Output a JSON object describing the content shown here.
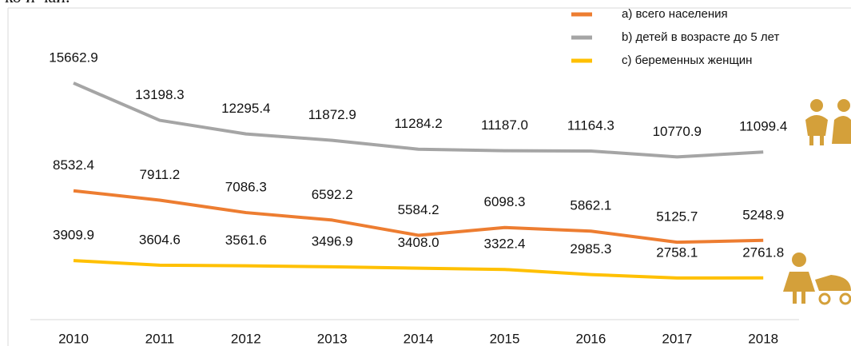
{
  "chart_data": {
    "type": "line",
    "caption": "ко и чай.",
    "categories": [
      "2010",
      "2011",
      "2012",
      "2013",
      "2014",
      "2015",
      "2016",
      "2017",
      "2018"
    ],
    "series": [
      {
        "name": "а) всего населения",
        "color": "#ed7d31",
        "values": [
          8532.4,
          7911.2,
          7086.3,
          6592.2,
          5584.2,
          6098.3,
          5862.1,
          5125.7,
          5248.9
        ],
        "value_labels": [
          "8532.4",
          "7911.2",
          "7086.3",
          "6592.2",
          "5584.2",
          "6098.3",
          "5862.1",
          "5125.7",
          "5248.9"
        ]
      },
      {
        "name": "b) детей в возрасте до 5 лет",
        "color": "#a5a5a5",
        "values": [
          15662.9,
          13198.3,
          12295.4,
          11872.9,
          11284.2,
          11187.0,
          11164.3,
          10770.9,
          11099.4
        ],
        "value_labels": [
          "15662.9",
          "13198.3",
          "12295.4",
          "11872.9",
          "11284.2",
          "11187.0",
          "11164.3",
          "10770.9",
          "11099.4"
        ]
      },
      {
        "name": "c) беременных женщин",
        "color": "#ffc000",
        "values": [
          3909.9,
          3604.6,
          3561.6,
          3496.9,
          3408.0,
          3322.4,
          2985.3,
          2758.1,
          2761.8
        ],
        "value_labels": [
          "3909.9",
          "3604.6",
          "3561.6",
          "3496.9",
          "3408.0",
          "3322.4",
          "2985.3",
          "2758.1",
          "2761.8"
        ]
      }
    ],
    "ylim": [
      0,
      20000
    ],
    "legend": "top-right"
  }
}
